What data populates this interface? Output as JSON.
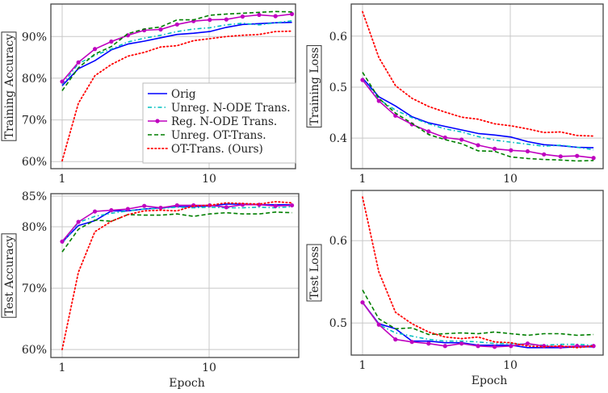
{
  "legend": [
    "Orig",
    "Unreg. N-ODE Trans.",
    "Reg. N-ODE Trans.",
    "Unreg. OT-Trans.",
    "OT-Trans. (Ours)"
  ],
  "series_styles": [
    {
      "color": "#0000ff",
      "style": "solid"
    },
    {
      "color": "#00bfbf",
      "style": "dash-dot"
    },
    {
      "color": "#bf00bf",
      "style": "solid-markers"
    },
    {
      "color": "#007f00",
      "style": "dashed"
    },
    {
      "color": "#ff0000",
      "style": "dotted"
    }
  ],
  "chart_data": [
    {
      "type": "line",
      "ylabel": "Training Accuracy",
      "xlabel": "",
      "xscale": "log",
      "xticks": [
        "1",
        "10"
      ],
      "yticks": [
        "60%",
        "70%",
        "80%",
        "90%"
      ],
      "ylim": [
        58.3,
        97.8
      ],
      "grid": true,
      "legend_position": "bottom-right",
      "x": [
        1,
        1.29,
        1.67,
        2.16,
        2.8,
        3.62,
        4.68,
        6.05,
        7.83,
        10.1,
        13.1,
        16.9,
        21.9,
        28.3,
        36.6
      ],
      "series": [
        {
          "name": "Orig",
          "values": [
            78.2,
            82.3,
            84.2,
            86.8,
            88.2,
            88.9,
            89.7,
            90.5,
            90.8,
            91.2,
            92.2,
            92.9,
            93.1,
            93.3,
            93.4
          ]
        },
        {
          "name": "Unreg. N-ODE Trans.",
          "values": [
            78.5,
            83.5,
            85.5,
            87.0,
            88.7,
            89.6,
            90.3,
            91.2,
            91.8,
            92.1,
            92.8,
            93.2,
            92.8,
            93.3,
            93.8
          ]
        },
        {
          "name": "Reg. N-ODE Trans.",
          "values": [
            79.2,
            83.8,
            87.0,
            88.8,
            90.3,
            91.5,
            91.7,
            92.9,
            93.7,
            94.0,
            94.1,
            94.8,
            95.2,
            94.9,
            95.4
          ]
        },
        {
          "name": "Unreg. OT-Trans.",
          "values": [
            77.0,
            82.5,
            85.8,
            87.6,
            90.7,
            91.8,
            92.3,
            94.0,
            94.0,
            95.1,
            95.4,
            95.6,
            95.8,
            96.0,
            95.9
          ]
        },
        {
          "name": "OT-Trans. (Ours)",
          "values": [
            60.2,
            74.0,
            80.6,
            83.3,
            85.3,
            86.2,
            87.5,
            87.8,
            89.0,
            89.5,
            90.0,
            90.3,
            90.5,
            91.2,
            91.3
          ]
        }
      ]
    },
    {
      "type": "line",
      "ylabel": "Training Loss",
      "xlabel": "",
      "xscale": "log",
      "xticks": [
        "1",
        "10"
      ],
      "yticks": [
        "0.4",
        "0.5",
        "0.6"
      ],
      "ylim": [
        0.34,
        0.663
      ],
      "grid": true,
      "x": [
        1,
        1.29,
        1.67,
        2.16,
        2.8,
        3.62,
        4.68,
        6.05,
        7.83,
        10.1,
        13.1,
        16.9,
        21.9,
        28.3,
        36.6
      ],
      "series": [
        {
          "name": "Orig",
          "values": [
            0.518,
            0.481,
            0.463,
            0.442,
            0.43,
            0.423,
            0.416,
            0.409,
            0.406,
            0.402,
            0.393,
            0.387,
            0.385,
            0.382,
            0.381
          ]
        },
        {
          "name": "Unreg. N-ODE Trans.",
          "values": [
            0.515,
            0.476,
            0.455,
            0.44,
            0.428,
            0.418,
            0.412,
            0.403,
            0.396,
            0.392,
            0.388,
            0.384,
            0.386,
            0.382,
            0.377
          ]
        },
        {
          "name": "Reg. N-ODE Trans.",
          "values": [
            0.514,
            0.473,
            0.444,
            0.427,
            0.413,
            0.401,
            0.397,
            0.386,
            0.379,
            0.376,
            0.374,
            0.368,
            0.364,
            0.365,
            0.361
          ]
        },
        {
          "name": "Unreg. OT-Trans.",
          "values": [
            0.529,
            0.478,
            0.449,
            0.429,
            0.407,
            0.397,
            0.389,
            0.375,
            0.374,
            0.363,
            0.36,
            0.358,
            0.357,
            0.355,
            0.356
          ]
        },
        {
          "name": "OT-Trans. (Ours)",
          "values": [
            0.648,
            0.558,
            0.503,
            0.478,
            0.462,
            0.451,
            0.441,
            0.437,
            0.428,
            0.424,
            0.418,
            0.411,
            0.412,
            0.405,
            0.404
          ]
        }
      ]
    },
    {
      "type": "line",
      "ylabel": "Test Accuracy",
      "xlabel": "Epoch",
      "xscale": "log",
      "xticks": [
        "1",
        "10"
      ],
      "yticks": [
        "60%",
        "70%",
        "80%",
        "85%"
      ],
      "ylim": [
        58.7,
        85.4
      ],
      "grid": true,
      "x": [
        1,
        1.29,
        1.67,
        2.16,
        2.8,
        3.62,
        4.68,
        6.05,
        7.83,
        10.1,
        13.1,
        16.9,
        21.9,
        28.3,
        36.6
      ],
      "series": [
        {
          "name": "Orig",
          "values": [
            77.5,
            80.2,
            81.0,
            82.6,
            82.6,
            82.9,
            83.1,
            83.3,
            83.3,
            83.4,
            83.7,
            83.7,
            83.6,
            83.6,
            83.6
          ]
        },
        {
          "name": "Unreg. N-ODE Trans.",
          "values": [
            77.3,
            80.7,
            81.7,
            82.2,
            82.6,
            82.9,
            83.0,
            83.2,
            83.1,
            83.2,
            83.1,
            83.1,
            83.2,
            83.1,
            83.3
          ]
        },
        {
          "name": "Reg. N-ODE Trans.",
          "values": [
            77.6,
            80.8,
            82.5,
            82.7,
            82.9,
            83.4,
            83.1,
            83.5,
            83.5,
            83.5,
            83.2,
            83.6,
            83.6,
            83.4,
            83.5
          ]
        },
        {
          "name": "Unreg. OT-Trans.",
          "values": [
            75.9,
            79.6,
            81.1,
            80.9,
            82.0,
            81.9,
            81.9,
            82.1,
            81.7,
            82.1,
            82.3,
            82.1,
            82.1,
            82.4,
            82.3
          ]
        },
        {
          "name": "OT-Trans. (Ours)",
          "values": [
            60.0,
            72.6,
            79.2,
            80.9,
            82.0,
            82.6,
            82.7,
            82.6,
            83.4,
            83.5,
            83.9,
            83.8,
            83.7,
            84.1,
            83.9
          ]
        }
      ]
    },
    {
      "type": "line",
      "ylabel": "Test Loss",
      "xlabel": "Epoch",
      "xscale": "log",
      "xticks": [
        "1",
        "10"
      ],
      "yticks": [
        "0.5",
        "0.6"
      ],
      "ylim": [
        0.461,
        0.661
      ],
      "grid": true,
      "x": [
        1,
        1.29,
        1.67,
        2.16,
        2.8,
        3.62,
        4.68,
        6.05,
        7.83,
        10.1,
        13.1,
        16.9,
        21.9,
        28.3,
        36.6
      ],
      "series": [
        {
          "name": "Orig",
          "values": [
            0.525,
            0.499,
            0.493,
            0.478,
            0.478,
            0.476,
            0.476,
            0.473,
            0.473,
            0.473,
            0.47,
            0.47,
            0.47,
            0.471,
            0.471
          ]
        },
        {
          "name": "Unreg. N-ODE Trans.",
          "values": [
            0.525,
            0.498,
            0.488,
            0.484,
            0.48,
            0.478,
            0.478,
            0.477,
            0.475,
            0.475,
            0.474,
            0.473,
            0.474,
            0.474,
            0.473
          ]
        },
        {
          "name": "Reg. N-ODE Trans.",
          "values": [
            0.525,
            0.498,
            0.48,
            0.477,
            0.475,
            0.472,
            0.475,
            0.472,
            0.471,
            0.472,
            0.475,
            0.472,
            0.471,
            0.472,
            0.472
          ]
        },
        {
          "name": "Unreg. OT-Trans.",
          "values": [
            0.54,
            0.505,
            0.493,
            0.494,
            0.486,
            0.487,
            0.488,
            0.487,
            0.489,
            0.487,
            0.485,
            0.487,
            0.487,
            0.485,
            0.486
          ]
        },
        {
          "name": "OT-Trans. (Ours)",
          "values": [
            0.653,
            0.562,
            0.513,
            0.499,
            0.489,
            0.483,
            0.481,
            0.483,
            0.477,
            0.476,
            0.472,
            0.471,
            0.472,
            0.47,
            0.472
          ]
        }
      ]
    }
  ]
}
